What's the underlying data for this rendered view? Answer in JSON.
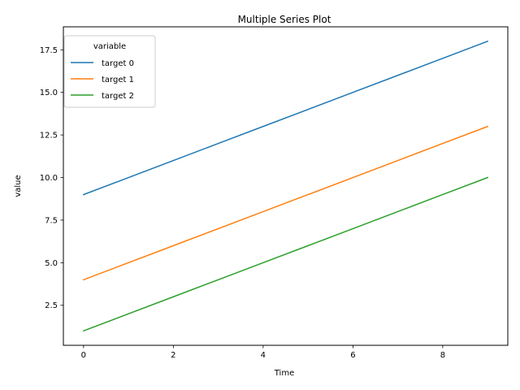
{
  "chart_data": {
    "type": "line",
    "title": "Multiple Series Plot",
    "xlabel": "Time",
    "ylabel": "value",
    "x": [
      0,
      1,
      2,
      3,
      4,
      5,
      6,
      7,
      8,
      9
    ],
    "xlim": [
      -0.45,
      9.45
    ],
    "ylim": [
      0.15,
      18.85
    ],
    "xticks": [
      0,
      2,
      4,
      6,
      8
    ],
    "xtick_labels": [
      "0",
      "2",
      "4",
      "6",
      "8"
    ],
    "yticks": [
      2.5,
      5.0,
      7.5,
      10.0,
      12.5,
      15.0,
      17.5
    ],
    "ytick_labels": [
      "2.5",
      "5.0",
      "7.5",
      "10.0",
      "12.5",
      "15.0",
      "17.5"
    ],
    "grid": false,
    "legend": {
      "title": "variable",
      "placement": "top-left"
    },
    "series": [
      {
        "name": "target 0",
        "color": "#1f77b4",
        "values": [
          9,
          10,
          11,
          12,
          13,
          14,
          15,
          16,
          17,
          18
        ]
      },
      {
        "name": "target 1",
        "color": "#ff7f0e",
        "values": [
          4,
          5,
          6,
          7,
          8,
          9,
          10,
          11,
          12,
          13
        ]
      },
      {
        "name": "target 2",
        "color": "#2ca02c",
        "values": [
          1,
          2,
          3,
          4,
          5,
          6,
          7,
          8,
          9,
          10
        ]
      }
    ]
  }
}
